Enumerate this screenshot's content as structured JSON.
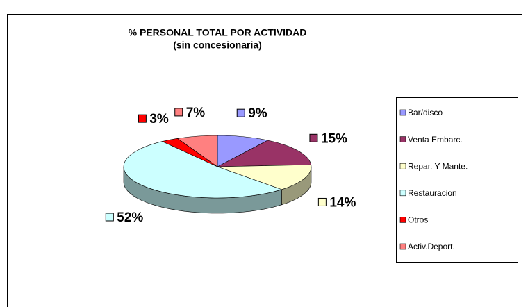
{
  "chart_data": {
    "type": "pie3d",
    "title": "% PERSONAL TOTAL POR ACTIVIDAD",
    "subtitle": "(sin concesionaria)",
    "categories": [
      "Bar/disco",
      "Venta Embarc.",
      "Repar. Y Mante.",
      "Restauracion",
      "Otros",
      "Activ.Deport."
    ],
    "values": [
      9,
      15,
      14,
      52,
      3,
      7
    ],
    "value_labels": [
      "9%",
      "15%",
      "14%",
      "52%",
      "3%",
      "7%"
    ],
    "colors": [
      "#9999ff",
      "#993366",
      "#ffffcc",
      "#ccffff",
      "#ff0000",
      "#ff8080"
    ],
    "legend": "right"
  }
}
